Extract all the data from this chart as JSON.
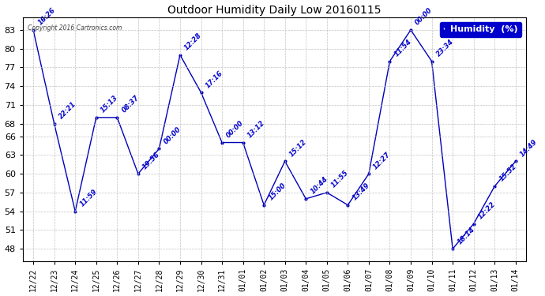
{
  "title": "Outdoor Humidity Daily Low 20160115",
  "copyright": "Copyright 2016 Cartronics.com",
  "legend_label": "Humidity  (%)",
  "ylim": [
    46,
    85
  ],
  "yticks": [
    48,
    51,
    54,
    57,
    60,
    63,
    66,
    68,
    71,
    74,
    77,
    80,
    83
  ],
  "x_labels": [
    "12/22",
    "12/23",
    "12/24",
    "12/25",
    "12/26",
    "12/27",
    "12/28",
    "12/29",
    "12/30",
    "12/31",
    "01/01",
    "01/02",
    "01/03",
    "01/04",
    "01/05",
    "01/06",
    "01/07",
    "01/08",
    "01/09",
    "01/10",
    "01/11",
    "01/12",
    "01/13",
    "01/14"
  ],
  "y_values": [
    83,
    68,
    54,
    69,
    69,
    60,
    64,
    79,
    73,
    65,
    65,
    55,
    62,
    56,
    57,
    55,
    60,
    78,
    83,
    78,
    48,
    52,
    58,
    62
  ],
  "time_labels": [
    "16:26",
    "22:21",
    "11:59",
    "15:13",
    "08:37",
    "19:56",
    "00:00",
    "12:28",
    "17:16",
    "00:00",
    "13:12",
    "15:00",
    "15:12",
    "10:44",
    "11:55",
    "13:49",
    "12:27",
    "11:54",
    "00:00",
    "23:34",
    "18:14",
    "12:22",
    "15:52",
    "14:49"
  ],
  "line_color": "#0000bb",
  "background_color": "#ffffff",
  "grid_color": "#bbbbbb",
  "title_color": "#000000",
  "label_color": "#0000cc",
  "legend_bg": "#0000cc",
  "legend_text_color": "#ffffff"
}
